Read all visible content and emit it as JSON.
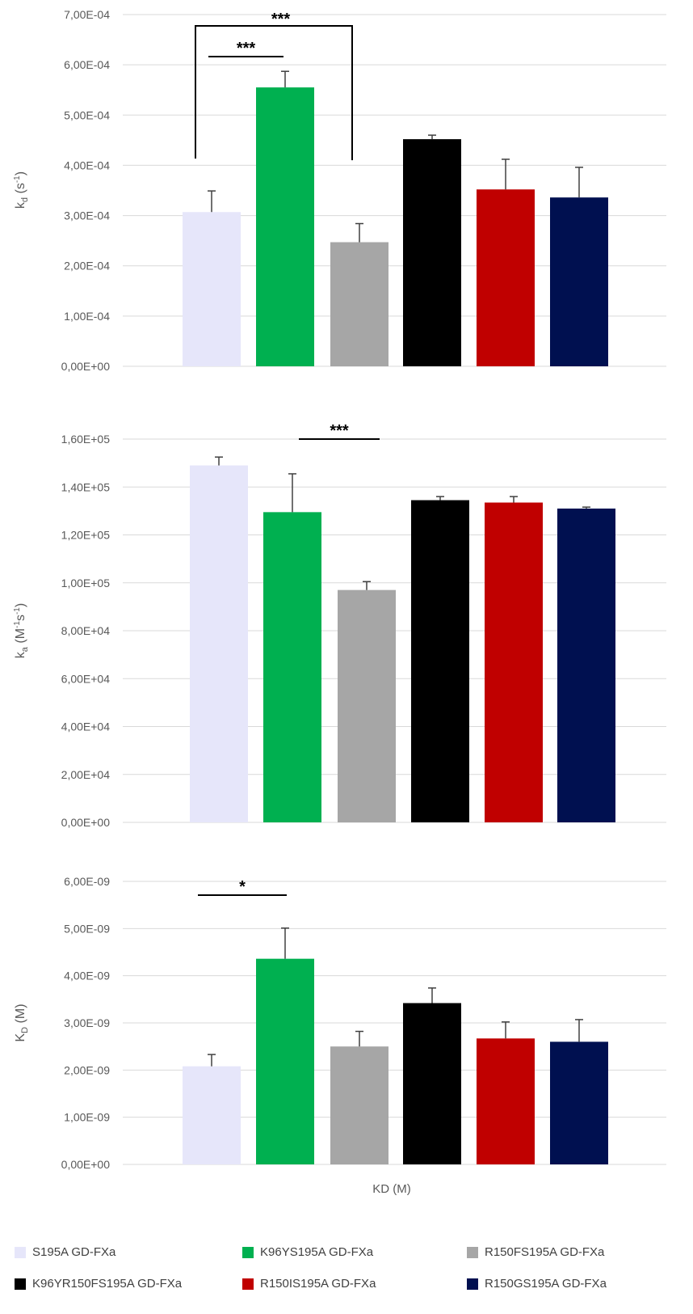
{
  "legend": [
    {
      "label": "S195A GD-FXa",
      "color": "#E6E6FA"
    },
    {
      "label": "K96YS195A GD-FXa",
      "color": "#00B050"
    },
    {
      "label": "R150FS195A GD-FXa",
      "color": "#A6A6A6"
    },
    {
      "label": "K96YR150FS195A GD-FXa",
      "color": "#000000"
    },
    {
      "label": "R150IS195A GD-FXa",
      "color": "#C00000"
    },
    {
      "label": "R150GS195A GD-FXa",
      "color": "#001050"
    }
  ],
  "chart_data": [
    {
      "type": "bar",
      "ylabel": "kd (s-1)",
      "ylabel_main": "k",
      "ylabel_sub": "d",
      "ylabel_rest": " (s",
      "ylabel_sup": "-1",
      "ylabel_end": ")",
      "ylim": [
        0,
        0.0007
      ],
      "yticks": [
        "0,00E+00",
        "1,00E-04",
        "2,00E-04",
        "3,00E-04",
        "4,00E-04",
        "5,00E-04",
        "6,00E-04",
        "7,00E-04"
      ],
      "categories": [
        "S195A GD-FXa",
        "K96YS195A GD-FXa",
        "R150FS195A GD-FXa",
        "K96YR150FS195A GD-FXa",
        "R150IS195A GD-FXa",
        "R150GS195A GD-FXa"
      ],
      "values": [
        0.000307,
        0.000555,
        0.000247,
        0.000452,
        0.000352,
        0.000336
      ],
      "errors": [
        4.2e-05,
        3.2e-05,
        3.7e-05,
        8e-06,
        6e-05,
        6e-05
      ],
      "significance": [
        {
          "from": 0,
          "to": 2,
          "label": "***",
          "style": "bracket"
        },
        {
          "from": 0,
          "to": 1,
          "label": "***",
          "style": "line"
        }
      ],
      "xlabel": ""
    },
    {
      "type": "bar",
      "ylabel": "ka (M-1s-1)",
      "ylabel_main": "k",
      "ylabel_sub": "a",
      "ylabel_rest": " (M",
      "ylabel_sup": "-1",
      "ylabel_mid": "s",
      "ylabel_sup2": "-1",
      "ylabel_end": ")",
      "ylim": [
        0,
        160000
      ],
      "yticks": [
        "0,00E+00",
        "2,00E+04",
        "4,00E+04",
        "6,00E+04",
        "8,00E+04",
        "1,00E+05",
        "1,20E+05",
        "1,40E+05",
        "1,60E+05"
      ],
      "categories": [
        "S195A GD-FXa",
        "K96YS195A GD-FXa",
        "R150FS195A GD-FXa",
        "K96YR150FS195A GD-FXa",
        "R150IS195A GD-FXa",
        "R150GS195A GD-FXa"
      ],
      "values": [
        149000,
        129500,
        97000,
        134500,
        133500,
        131000
      ],
      "errors": [
        3500,
        16000,
        3500,
        1500,
        2500,
        600
      ],
      "significance": [
        {
          "from": 1,
          "to": 2,
          "label": "***",
          "style": "line"
        }
      ],
      "xlabel": ""
    },
    {
      "type": "bar",
      "ylabel": "KD (M)",
      "ylabel_main": "K",
      "ylabel_sub": "D",
      "ylabel_rest": " (M)",
      "ylim": [
        0,
        6e-09
      ],
      "yticks": [
        "0,00E+00",
        "1,00E-09",
        "2,00E-09",
        "3,00E-09",
        "4,00E-09",
        "5,00E-09",
        "6,00E-09"
      ],
      "categories": [
        "S195A GD-FXa",
        "K96YS195A GD-FXa",
        "R150FS195A GD-FXa",
        "K96YR150FS195A GD-FXa",
        "R150IS195A GD-FXa",
        "R150GS195A GD-FXa"
      ],
      "values": [
        2.08e-09,
        4.36e-09,
        2.5e-09,
        3.42e-09,
        2.67e-09,
        2.6e-09
      ],
      "errors": [
        2.5e-10,
        6.5e-10,
        3.2e-10,
        3.2e-10,
        3.5e-10,
        4.7e-10
      ],
      "significance": [
        {
          "from": 0,
          "to": 1,
          "label": "*",
          "style": "line"
        }
      ],
      "xlabel": "KD (M)"
    }
  ]
}
